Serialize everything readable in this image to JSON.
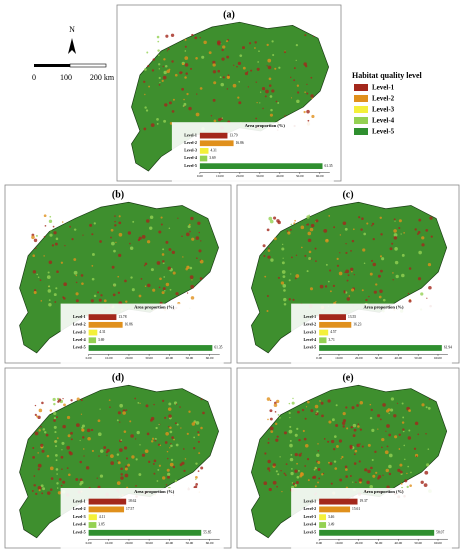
{
  "scale": {
    "north": "N",
    "labels": [
      "0",
      "100",
      "200 km"
    ]
  },
  "legend": {
    "title": "Habitat quality level",
    "items": [
      {
        "name": "Level-1",
        "color": "#a3271b"
      },
      {
        "name": "Level-2",
        "color": "#e0901c"
      },
      {
        "name": "Level-3",
        "color": "#f4f03a"
      },
      {
        "name": "Level-4",
        "color": "#94d152"
      },
      {
        "name": "Level-5",
        "color": "#2f8f2f"
      }
    ]
  },
  "inset": {
    "title": "Area proportion (%)",
    "xlim": [
      0,
      65
    ],
    "ticks": [
      {
        "value": 0,
        "label": "0.00"
      },
      {
        "value": 10,
        "label": "10.00"
      },
      {
        "value": 20,
        "label": "20.00"
      },
      {
        "value": 30,
        "label": "30.00"
      },
      {
        "value": 40,
        "label": "40.00"
      },
      {
        "value": 50,
        "label": "50.00"
      },
      {
        "value": 60,
        "label": "60.00"
      }
    ]
  },
  "panels": [
    {
      "label": "(a)",
      "values": [
        13.79,
        16.86,
        4.31,
        3.69,
        61.35
      ]
    },
    {
      "label": "(b)",
      "values": [
        13.78,
        16.86,
        4.31,
        3.69,
        61.35
      ]
    },
    {
      "label": "(c)",
      "values": [
        13.55,
        16.23,
        4.57,
        3.71,
        61.94
      ]
    },
    {
      "label": "(d)",
      "values": [
        18.62,
        17.57,
        4.11,
        3.85,
        55.85
      ]
    },
    {
      "label": "(e)",
      "values": [
        19.37,
        15.61,
        3.46,
        3.49,
        58.07
      ]
    }
  ]
}
